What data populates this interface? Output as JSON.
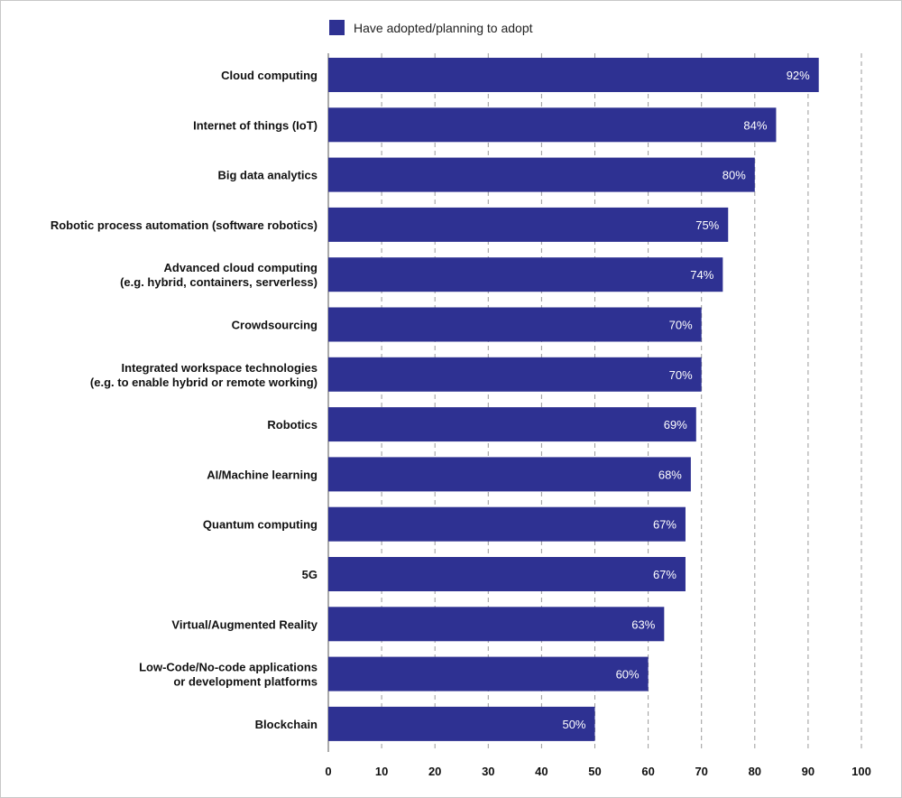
{
  "chart_data": {
    "type": "bar",
    "orientation": "horizontal",
    "legend": {
      "label": "Have adopted/planning to adopt",
      "placement": "top-center"
    },
    "categories": [
      [
        "Cloud computing"
      ],
      [
        "Internet of things (IoT)"
      ],
      [
        "Big data analytics"
      ],
      [
        "Robotic process automation (software robotics)"
      ],
      [
        "Advanced cloud computing",
        "(e.g. hybrid, containers, serverless)"
      ],
      [
        "Crowdsourcing"
      ],
      [
        "Integrated workspace technologies",
        "(e.g. to enable hybrid or remote working)"
      ],
      [
        "Robotics"
      ],
      [
        "AI/Machine learning"
      ],
      [
        "Quantum computing"
      ],
      [
        "5G"
      ],
      [
        "Virtual/Augmented Reality"
      ],
      [
        "Low-Code/No-code applications",
        "or development platforms"
      ],
      [
        "Blockchain"
      ]
    ],
    "series": [
      {
        "name": "Have adopted/planning to adopt",
        "color": "#2e3192",
        "values": [
          92,
          84,
          80,
          75,
          74,
          70,
          70,
          69,
          68,
          67,
          67,
          63,
          60,
          50
        ],
        "value_labels": [
          "92%",
          "84%",
          "80%",
          "75%",
          "74%",
          "70%",
          "70%",
          "69%",
          "68%",
          "67%",
          "67%",
          "63%",
          "60%",
          "50%"
        ]
      }
    ],
    "xlim": [
      0,
      100
    ],
    "xticks": [
      0,
      10,
      20,
      30,
      40,
      50,
      60,
      70,
      80,
      90,
      100
    ],
    "grid": "vertical-dashed",
    "colors": {
      "bar": "#2e3192",
      "grid": "#9a9a9a",
      "axis": "#555555"
    }
  }
}
